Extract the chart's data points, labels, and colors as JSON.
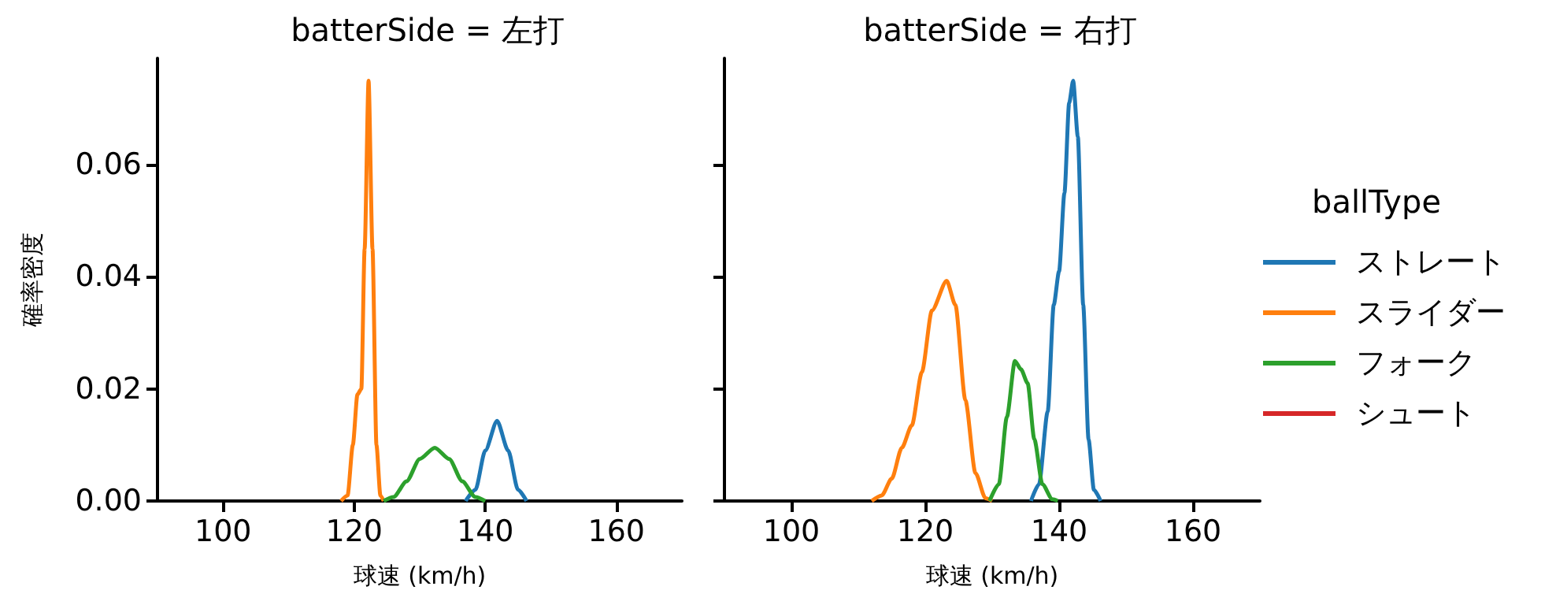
{
  "chart_data": [
    {
      "type": "line",
      "title": "batterSide = 左打",
      "xlabel": "球速 (km/h)",
      "ylabel": "確率密度",
      "xlim": [
        90,
        170
      ],
      "xticks": [
        100,
        120,
        140,
        160
      ],
      "ylim": [
        0,
        0.079
      ],
      "yticks": [
        {
          "value": 0,
          "label": "0.00"
        },
        {
          "value": 0.02,
          "label": "0.02"
        },
        {
          "value": 0.04,
          "label": "0.04"
        },
        {
          "value": 0.06,
          "label": "0.06"
        }
      ],
      "grid": false,
      "marker": "none",
      "legend": false,
      "series": [
        {
          "color": "#1f77b4",
          "x": [
            137,
            138.5,
            140,
            141.8,
            143.5,
            145,
            146.3
          ],
          "values": [
            0,
            0.002,
            0.009,
            0.0143,
            0.009,
            0.002,
            0
          ]
        },
        {
          "color": "#ff7f0e",
          "x": [
            118,
            119,
            119.8,
            120.5,
            121.1,
            121.6,
            122.2,
            122.8,
            123.4,
            124,
            124.5
          ],
          "values": [
            0,
            0.001,
            0.01,
            0.019,
            0.02,
            0.045,
            0.075,
            0.045,
            0.01,
            0.001,
            0
          ]
        },
        {
          "color": "#2ca02c",
          "x": [
            124.5,
            126,
            128,
            130,
            132.3,
            134.5,
            136.5,
            138.5,
            140
          ],
          "values": [
            0,
            0.0007,
            0.0035,
            0.0075,
            0.0095,
            0.0075,
            0.0035,
            0.0007,
            0
          ]
        }
      ]
    },
    {
      "type": "line",
      "title": "batterSide = 右打",
      "xlabel": "球速 (km/h)",
      "legend_title": "ballType",
      "xlim": [
        90,
        170
      ],
      "xticks": [
        100,
        120,
        140,
        160
      ],
      "ylim": [
        0,
        0.079
      ],
      "yticks": [
        {
          "value": 0,
          "label": null
        },
        {
          "value": 0.02,
          "label": null
        },
        {
          "value": 0.04,
          "label": null
        },
        {
          "value": 0.06,
          "label": null
        }
      ],
      "tick_labels": "x",
      "grid": false,
      "marker": "none",
      "legend": "right",
      "series": [
        {
          "name": "ストレート",
          "color": "#1f77b4",
          "x": [
            135.8,
            137,
            138.3,
            139.2,
            140,
            140.8,
            141.5,
            142.1,
            142.8,
            143.6,
            144.4,
            145.2,
            146.2
          ],
          "values": [
            0,
            0.003,
            0.016,
            0.035,
            0.041,
            0.055,
            0.071,
            0.075,
            0.065,
            0.035,
            0.011,
            0.002,
            0
          ]
        },
        {
          "name": "スライダー",
          "color": "#ff7f0e",
          "x": [
            112,
            113.5,
            115,
            116.5,
            118,
            119.5,
            121,
            123.2,
            124.5,
            126,
            127.5,
            129,
            130
          ],
          "values": [
            0,
            0.001,
            0.004,
            0.0095,
            0.0135,
            0.023,
            0.034,
            0.0393,
            0.035,
            0.018,
            0.005,
            0.0005,
            0
          ]
        },
        {
          "name": "フォーク",
          "color": "#2ca02c",
          "x": [
            129.6,
            131,
            132.2,
            133.4,
            134.3,
            135.3,
            136.3,
            137.5,
            139,
            139.8
          ],
          "values": [
            0,
            0.003,
            0.015,
            0.025,
            0.0235,
            0.021,
            0.011,
            0.003,
            0.0003,
            0
          ]
        },
        {
          "name": "シュート",
          "color": "#d62728"
        }
      ]
    }
  ]
}
